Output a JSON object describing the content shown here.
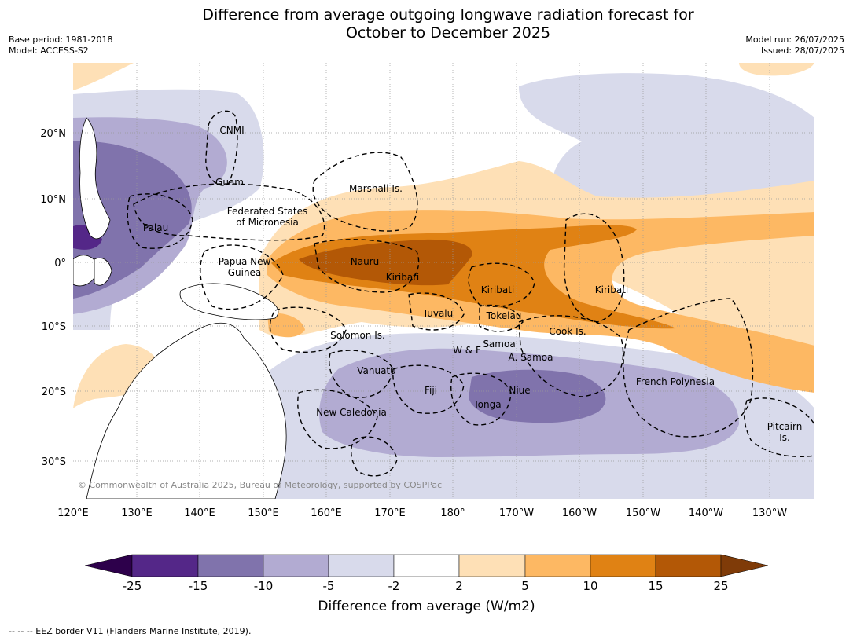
{
  "header": {
    "title_line1": "Difference from average outgoing longwave radiation forecast for",
    "title_line2": "October to December 2025",
    "base_period": "Base period: 1981-2018",
    "model": "Model: ACCESS-S2",
    "model_run": "Model run: 26/07/2025",
    "issued": "Issued: 28/07/2025"
  },
  "map": {
    "lon_ticks": [
      "120°E",
      "130°E",
      "140°E",
      "150°E",
      "160°E",
      "170°E",
      "180°",
      "170°W",
      "160°W",
      "150°W",
      "140°W",
      "130°W"
    ],
    "lat_ticks": [
      "20°N",
      "10°N",
      "0°",
      "10°S",
      "20°S",
      "30°S"
    ],
    "places": [
      "CNMI",
      "Guam",
      "Marshall Is.",
      "Federated States",
      "of Micronesia",
      "Palau",
      "Papua New",
      "Guinea",
      "Nauru",
      "Kiribati",
      "Kiribati",
      "Kiribati",
      "Tuvalu",
      "Tokelau",
      "Cook Is.",
      "Solomon Is.",
      "W & F",
      "Samoa",
      "A. Samoa",
      "Vanuatu",
      "Fiji",
      "Niue",
      "Tonga",
      "French Polynesia",
      "New Caledonia",
      "Pitcairn",
      "Is."
    ],
    "copyright": "© Commonwealth of Australia 2025, Bureau of Meteorology, supported by COSPPac"
  },
  "colorbar": {
    "ticks": [
      "-25",
      "-15",
      "-10",
      "-5",
      "-2",
      "2",
      "5",
      "10",
      "15",
      "25"
    ],
    "colors": [
      "#2d004b",
      "#542788",
      "#8073ac",
      "#b2abd2",
      "#d8daeb",
      "#ffffff",
      "#fee0b6",
      "#fdb863",
      "#e08214",
      "#b35806",
      "#7f3b08"
    ],
    "title": "Difference from average (W/m2)"
  },
  "footer": "--  --  -- EEZ border V11 (Flanders Marine Institute, 2019)."
}
